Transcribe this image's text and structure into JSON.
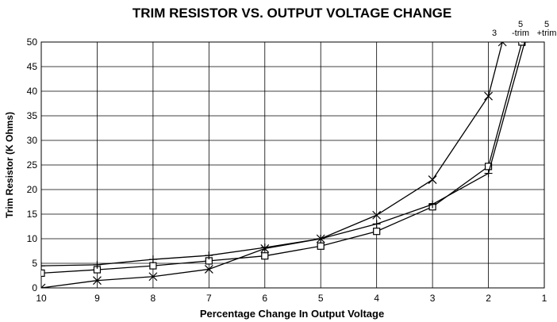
{
  "chart_data": {
    "type": "line",
    "title": "TRIM RESISTOR VS. OUTPUT VOLTAGE CHANGE",
    "x_label": "Percentage Change In Output Voltage",
    "y_label": "Trim Resistor (K Ohms)",
    "xlim": [
      10,
      1
    ],
    "xticks": [
      10,
      9,
      8,
      7,
      6,
      5,
      4,
      3,
      2,
      1
    ],
    "ylim": [
      0,
      50
    ],
    "yticks": [
      0,
      5,
      10,
      15,
      20,
      25,
      30,
      35,
      40,
      45,
      50
    ],
    "grid": true,
    "series": [
      {
        "name": "3",
        "color": "#000000",
        "marker": "x",
        "x": [
          10,
          9,
          8,
          7,
          6,
          5,
          4,
          3,
          2,
          1.75
        ],
        "values": [
          0,
          1.5,
          2.3,
          3.8,
          8,
          10,
          14.8,
          22,
          39,
          50
        ]
      },
      {
        "name": "5 -trim",
        "color": "#000000",
        "marker": "square",
        "x": [
          10,
          9,
          8,
          7,
          6,
          5,
          4,
          3,
          2,
          1.4
        ],
        "values": [
          3,
          3.7,
          4.5,
          5.5,
          6.5,
          8.5,
          11.5,
          16.5,
          24.7,
          50
        ]
      },
      {
        "name": "5 +trim",
        "color": "#000000",
        "marker": "plus",
        "x": [
          10,
          9,
          8,
          7,
          6,
          5,
          4,
          3,
          2,
          1.35
        ],
        "values": [
          4.5,
          4.7,
          5.8,
          6.6,
          8.2,
          10,
          13,
          17,
          23.3,
          50
        ]
      }
    ]
  }
}
